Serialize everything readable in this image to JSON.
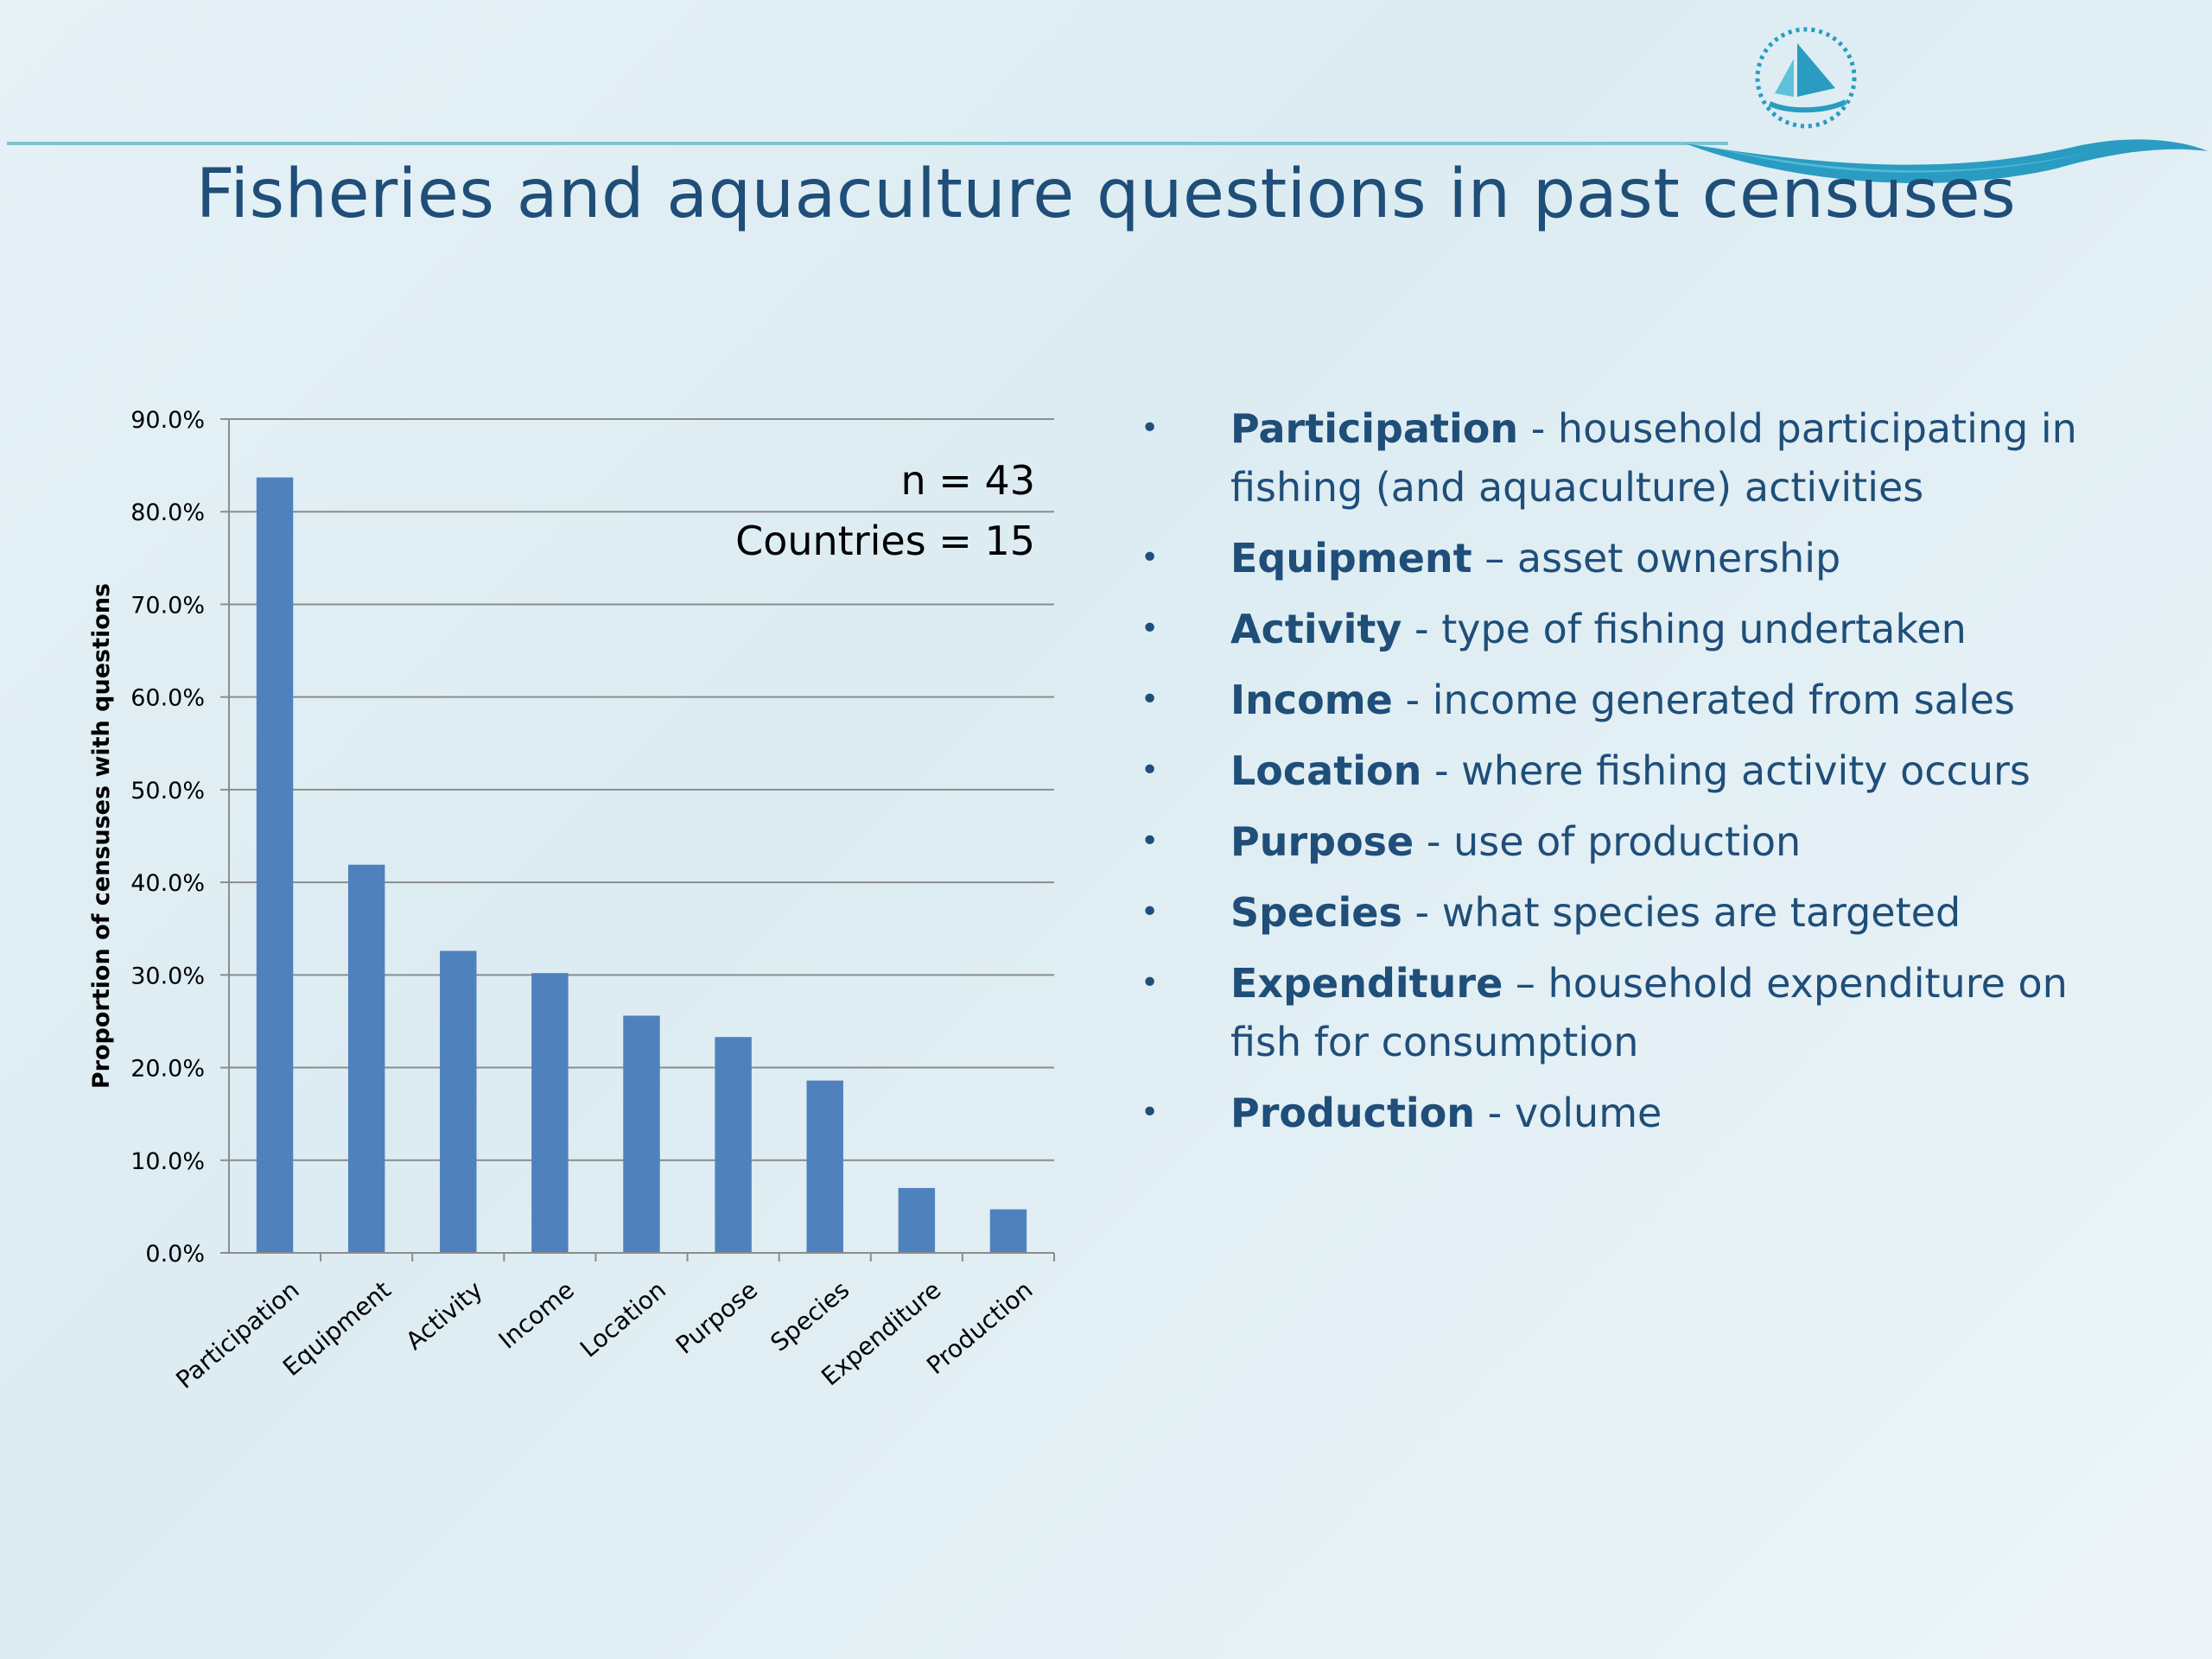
{
  "slide": {
    "title": "Fisheries and aquaculture questions in past censuses",
    "bullet_marker": "•",
    "bullets": [
      {
        "term": "Participation",
        "text": " - household participating in fishing (and aquaculture) activities"
      },
      {
        "term": "Equipment",
        "text": " – asset ownership"
      },
      {
        "term": "Activity",
        "text": " - type of fishing undertaken"
      },
      {
        "term": "Income",
        "text": " - income generated from sales"
      },
      {
        "term": "Location",
        "text": " - where fishing activity occurs"
      },
      {
        "term": "Purpose",
        "text": " - use of production"
      },
      {
        "term": "Species",
        "text": " - what species are targeted"
      },
      {
        "term": "Expenditure",
        "text": " – household expenditure on fish for consumption"
      },
      {
        "term": "Production",
        "text": " - volume"
      }
    ],
    "colors": {
      "title": "#1f4e79",
      "bar": "#4f81bd",
      "accent_wave": "#2a9cc2"
    },
    "icons": {
      "logo": "sailboat-emblem-icon"
    }
  },
  "chart_data": {
    "type": "bar",
    "categories": [
      "Participation",
      "Equipment",
      "Activity",
      "Income",
      "Location",
      "Purpose",
      "Species",
      "Expenditure",
      "Production"
    ],
    "values": [
      83.7,
      41.9,
      32.6,
      30.2,
      25.6,
      23.3,
      18.6,
      7.0,
      4.7
    ],
    "ylabel": "Proportion of censuses with questions",
    "xlabel": "",
    "ylim": [
      0,
      90
    ],
    "yticks": [
      "0.0%",
      "10.0%",
      "20.0%",
      "30.0%",
      "40.0%",
      "50.0%",
      "60.0%",
      "70.0%",
      "80.0%",
      "90.0%"
    ],
    "annotations": [
      "n = 43",
      "Countries = 15"
    ],
    "grid": true,
    "bar_color": "#4f81bd"
  }
}
